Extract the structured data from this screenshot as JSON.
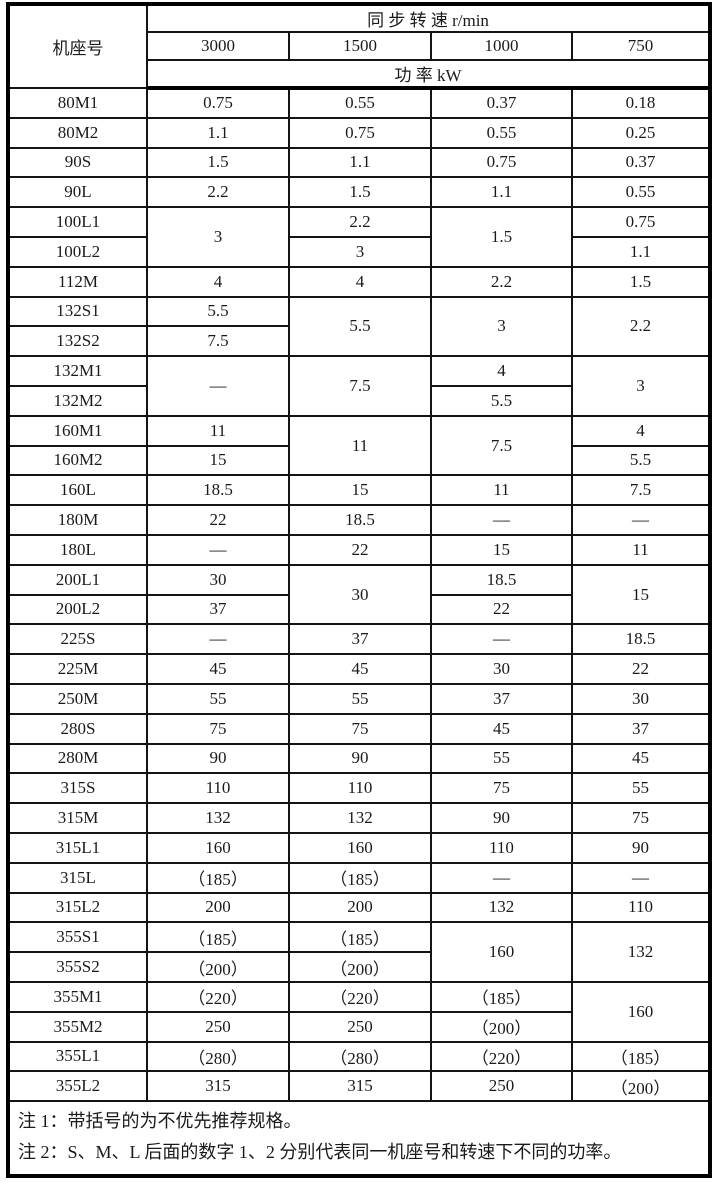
{
  "table": {
    "header": {
      "frame_label": "机座号",
      "speed_label": "同 步 转 速 r/min",
      "speeds": [
        "3000",
        "1500",
        "1000",
        "750"
      ],
      "power_label": "功 率 kW"
    },
    "rows": [
      {
        "label": "80M1",
        "cells": [
          "0.75",
          "0.55",
          "0.37",
          "0.18"
        ]
      },
      {
        "label": "80M2",
        "cells": [
          "1.1",
          "0.75",
          "0.55",
          "0.25"
        ]
      },
      {
        "label": "90S",
        "cells": [
          "1.5",
          "1.1",
          "0.75",
          "0.37"
        ]
      },
      {
        "label": "90L",
        "cells": [
          "2.2",
          "1.5",
          "1.1",
          "0.55"
        ]
      },
      {
        "label": "100L1",
        "cells": [
          {
            "t": "3",
            "rs": 2
          },
          "2.2",
          {
            "t": "1.5",
            "rs": 2
          },
          "0.75"
        ]
      },
      {
        "label": "100L2",
        "cells": [
          "3",
          "1.1"
        ]
      },
      {
        "label": "112M",
        "cells": [
          "4",
          "4",
          "2.2",
          "1.5"
        ]
      },
      {
        "label": "132S1",
        "cells": [
          "5.5",
          {
            "t": "5.5",
            "rs": 2
          },
          {
            "t": "3",
            "rs": 2
          },
          {
            "t": "2.2",
            "rs": 2
          }
        ]
      },
      {
        "label": "132S2",
        "cells": [
          "7.5"
        ]
      },
      {
        "label": "132M1",
        "cells": [
          {
            "t": "—",
            "rs": 2
          },
          {
            "t": "7.5",
            "rs": 2
          },
          "4",
          {
            "t": "3",
            "rs": 2
          }
        ]
      },
      {
        "label": "132M2",
        "cells": [
          "5.5"
        ]
      },
      {
        "label": "160M1",
        "cells": [
          "11",
          {
            "t": "11",
            "rs": 2
          },
          {
            "t": "7.5",
            "rs": 2
          },
          "4"
        ]
      },
      {
        "label": "160M2",
        "cells": [
          "15",
          "5.5"
        ]
      },
      {
        "label": "160L",
        "cells": [
          "18.5",
          "15",
          "11",
          "7.5"
        ]
      },
      {
        "label": "180M",
        "cells": [
          "22",
          "18.5",
          "—",
          "—"
        ]
      },
      {
        "label": "180L",
        "cells": [
          "—",
          "22",
          "15",
          "11"
        ]
      },
      {
        "label": "200L1",
        "cells": [
          "30",
          {
            "t": "30",
            "rs": 2
          },
          "18.5",
          {
            "t": "15",
            "rs": 2
          }
        ]
      },
      {
        "label": "200L2",
        "cells": [
          "37",
          "22"
        ]
      },
      {
        "label": "225S",
        "cells": [
          "—",
          "37",
          "—",
          "18.5"
        ]
      },
      {
        "label": "225M",
        "cells": [
          "45",
          "45",
          "30",
          "22"
        ]
      },
      {
        "label": "250M",
        "cells": [
          "55",
          "55",
          "37",
          "30"
        ]
      },
      {
        "label": "280S",
        "cells": [
          "75",
          "75",
          "45",
          "37"
        ]
      },
      {
        "label": "280M",
        "cells": [
          "90",
          "90",
          "55",
          "45"
        ]
      },
      {
        "label": "315S",
        "cells": [
          "110",
          "110",
          "75",
          "55"
        ]
      },
      {
        "label": "315M",
        "cells": [
          "132",
          "132",
          "90",
          "75"
        ]
      },
      {
        "label": "315L1",
        "cells": [
          "160",
          "160",
          "110",
          "90"
        ]
      },
      {
        "label": "315L",
        "cells": [
          "（185）",
          "（185）",
          "—",
          "—"
        ]
      },
      {
        "label": "315L2",
        "cells": [
          "200",
          "200",
          "132",
          "110"
        ]
      },
      {
        "label": "355S1",
        "cells": [
          "（185）",
          "（185）",
          {
            "t": "160",
            "rs": 2
          },
          {
            "t": "132",
            "rs": 2
          }
        ]
      },
      {
        "label": "355S2",
        "cells": [
          "（200）",
          "（200）"
        ]
      },
      {
        "label": "355M1",
        "cells": [
          "（220）",
          "（220）",
          "（185）",
          {
            "t": "160",
            "rs": 2
          }
        ]
      },
      {
        "label": "355M2",
        "cells": [
          "250",
          "250",
          "（200）"
        ]
      },
      {
        "label": "355L1",
        "cells": [
          "（280）",
          "（280）",
          "（220）",
          "（185）"
        ]
      },
      {
        "label": "355L2",
        "cells": [
          "315",
          "315",
          "250",
          "（200）"
        ]
      }
    ],
    "notes": [
      "注 1：带括号的为不优先推荐规格。",
      "注 2：S、M、L 后面的数字 1、2 分别代表同一机座号和转速下不同的功率。"
    ]
  }
}
